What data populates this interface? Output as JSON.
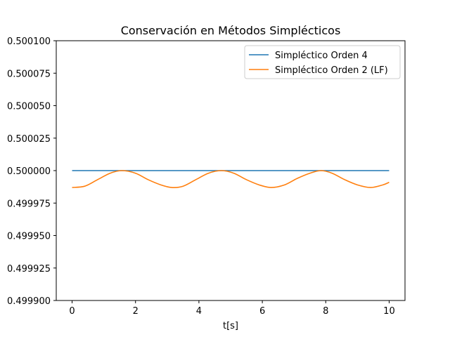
{
  "chart_data": {
    "type": "line",
    "title": "Conservación en Métodos Simplécticos",
    "xlabel": "t[s]",
    "ylabel": "",
    "xlim": [
      -0.5,
      10.5
    ],
    "ylim": [
      0.4999,
      0.5001
    ],
    "xticks": [
      0,
      2,
      4,
      6,
      8,
      10
    ],
    "xtick_labels": [
      "0",
      "2",
      "4",
      "6",
      "8",
      "10"
    ],
    "yticks": [
      0.4999,
      0.499925,
      0.49995,
      0.499975,
      0.5,
      0.500025,
      0.50005,
      0.500075,
      0.5001
    ],
    "ytick_labels": [
      "0.499900",
      "0.499925",
      "0.499950",
      "0.499975",
      "0.500000",
      "0.500025",
      "0.500050",
      "0.500075",
      "0.500100"
    ],
    "grid": false,
    "legend": "top-right",
    "series": [
      {
        "name": "Simpléctico Orden 4",
        "color": "#1f77b4",
        "x": [
          0,
          1,
          2,
          3,
          4,
          5,
          6,
          7,
          8,
          9,
          10
        ],
        "y": [
          0.5,
          0.5,
          0.5,
          0.5,
          0.5,
          0.5,
          0.5,
          0.5,
          0.5,
          0.5,
          0.5
        ]
      },
      {
        "name": "Simpléctico Orden 2 (LF)",
        "color": "#ff7f0e",
        "x": [
          0,
          0.4,
          0.8,
          1.2,
          1.57,
          2.0,
          2.4,
          2.8,
          3.14,
          3.5,
          3.9,
          4.3,
          4.71,
          5.1,
          5.5,
          5.9,
          6.28,
          6.7,
          7.1,
          7.5,
          7.85,
          8.2,
          8.6,
          9.0,
          9.42,
          9.8,
          10.0
        ],
        "y": [
          0.499987,
          0.499988,
          0.499993,
          0.499998,
          0.5,
          0.499998,
          0.499993,
          0.499989,
          0.499987,
          0.499988,
          0.499993,
          0.499998,
          0.5,
          0.499998,
          0.499993,
          0.499989,
          0.499987,
          0.499989,
          0.499994,
          0.499998,
          0.5,
          0.499998,
          0.499993,
          0.499989,
          0.499987,
          0.499989,
          0.499991
        ]
      }
    ]
  }
}
